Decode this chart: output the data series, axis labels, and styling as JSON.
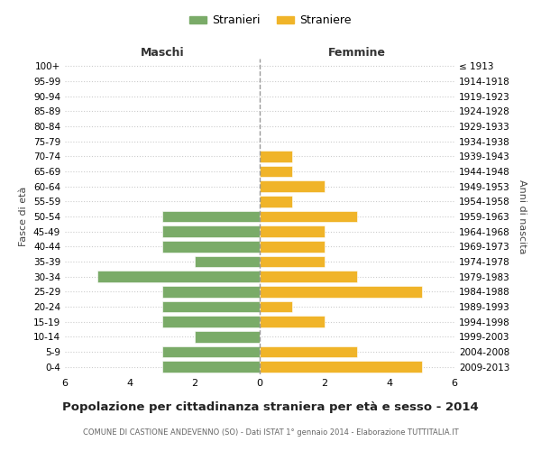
{
  "age_groups": [
    "100+",
    "95-99",
    "90-94",
    "85-89",
    "80-84",
    "75-79",
    "70-74",
    "65-69",
    "60-64",
    "55-59",
    "50-54",
    "45-49",
    "40-44",
    "35-39",
    "30-34",
    "25-29",
    "20-24",
    "15-19",
    "10-14",
    "5-9",
    "0-4"
  ],
  "birth_years": [
    "≤ 1913",
    "1914-1918",
    "1919-1923",
    "1924-1928",
    "1929-1933",
    "1934-1938",
    "1939-1943",
    "1944-1948",
    "1949-1953",
    "1954-1958",
    "1959-1963",
    "1964-1968",
    "1969-1973",
    "1974-1978",
    "1979-1983",
    "1984-1988",
    "1989-1993",
    "1994-1998",
    "1999-2003",
    "2004-2008",
    "2009-2013"
  ],
  "maschi": [
    0,
    0,
    0,
    0,
    0,
    0,
    0,
    0,
    0,
    0,
    3,
    3,
    3,
    2,
    5,
    3,
    3,
    3,
    2,
    3,
    3
  ],
  "femmine": [
    0,
    0,
    0,
    0,
    0,
    0,
    1,
    1,
    2,
    1,
    3,
    2,
    2,
    2,
    3,
    5,
    1,
    2,
    0,
    3,
    5
  ],
  "maschi_color": "#7aab68",
  "femmine_color": "#f0b429",
  "title": "Popolazione per cittadinanza straniera per età e sesso - 2014",
  "subtitle": "COMUNE DI CASTIONE ANDEVENNO (SO) - Dati ISTAT 1° gennaio 2014 - Elaborazione TUTTITALIA.IT",
  "xlabel_left": "Maschi",
  "xlabel_right": "Femmine",
  "ylabel_left": "Fasce di età",
  "ylabel_right": "Anni di nascita",
  "legend_maschi": "Stranieri",
  "legend_femmine": "Straniere",
  "xlim": 6,
  "background_color": "#ffffff",
  "grid_color": "#cccccc"
}
